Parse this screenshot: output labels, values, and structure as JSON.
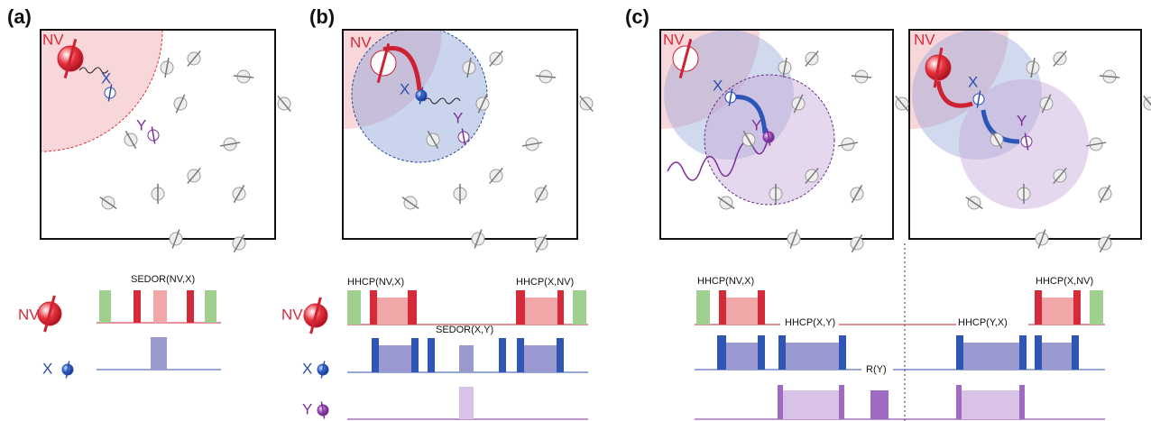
{
  "panels": [
    {
      "label": "(a)"
    },
    {
      "label": "(b)"
    },
    {
      "label": "(c)"
    }
  ],
  "scenes": [
    {
      "spins": [
        "NV",
        "X",
        "Y"
      ]
    },
    {
      "spins": [
        "NV",
        "X",
        "Y"
      ]
    },
    {
      "spins": [
        "NV",
        "X",
        "Y"
      ]
    },
    {
      "spins": [
        "NV",
        "X",
        "Y"
      ]
    }
  ],
  "sequences": [
    {
      "rows": [
        "NV",
        "X"
      ],
      "pulses": [
        "SEDOR(NV,X)"
      ]
    },
    {
      "rows": [
        "NV",
        "X",
        "Y"
      ],
      "pulses": [
        "HHCP(NV,X)",
        "SEDOR(X,Y)",
        "HHCP(X,NV)"
      ]
    },
    {
      "pulses": [
        "HHCP(NV,X)",
        "HHCP(X,Y)",
        "R(Y)",
        "HHCP(Y,X)",
        "HHCP(X,NV)"
      ]
    }
  ]
}
